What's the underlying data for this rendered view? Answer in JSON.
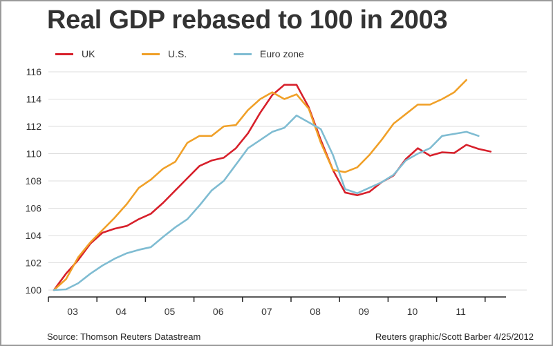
{
  "chart_data": {
    "type": "line",
    "title": "Real GDP rebased to 100 in 2003",
    "xlabel": "",
    "ylabel": "",
    "ylim": [
      100,
      116
    ],
    "yticks": [
      "100",
      "102",
      "104",
      "106",
      "108",
      "110",
      "112",
      "114",
      "116"
    ],
    "ytick_values": [
      100,
      102,
      104,
      106,
      108,
      110,
      112,
      114,
      116
    ],
    "xticks": [
      "03",
      "04",
      "05",
      "06",
      "07",
      "08",
      "09",
      "10",
      "11"
    ],
    "x_frequency": "quarterly",
    "x_start": "2003 Q1",
    "grid": true,
    "legend_position": "top-left",
    "series": [
      {
        "name": "UK",
        "color": "#d7202b",
        "values": [
          100,
          101.2,
          102.2,
          103.4,
          104.2,
          104.5,
          104.7,
          105.2,
          105.6,
          106.4,
          107.3,
          108.2,
          109.1,
          109.5,
          109.7,
          110.4,
          111.5,
          113.0,
          114.3,
          115.05,
          115.05,
          113.4,
          111.0,
          108.8,
          107.15,
          106.95,
          107.2,
          107.9,
          108.4,
          109.6,
          110.4,
          109.85,
          110.1,
          110.05,
          110.65,
          110.35,
          110.15
        ]
      },
      {
        "name": "U.S.",
        "color": "#f0a028",
        "values": [
          100,
          100.8,
          102.4,
          103.5,
          104.4,
          105.3,
          106.3,
          107.5,
          108.1,
          108.9,
          109.4,
          110.8,
          111.3,
          111.3,
          112.0,
          112.1,
          113.2,
          114.0,
          114.5,
          114.0,
          114.35,
          113.3,
          110.8,
          108.8,
          108.65,
          109.0,
          109.9,
          111.0,
          112.2,
          112.9,
          113.6,
          113.6,
          114.0,
          114.5,
          115.4
        ]
      },
      {
        "name": "Euro zone",
        "color": "#7fbcd2",
        "values": [
          100,
          100.05,
          100.5,
          101.2,
          101.8,
          102.3,
          102.7,
          102.95,
          103.15,
          103.9,
          104.6,
          105.2,
          106.2,
          107.3,
          108.0,
          109.2,
          110.4,
          111.0,
          111.6,
          111.9,
          112.8,
          112.3,
          111.8,
          109.9,
          107.4,
          107.1,
          107.5,
          107.9,
          108.45,
          109.5,
          110.0,
          110.4,
          111.3,
          111.45,
          111.6,
          111.3
        ]
      }
    ]
  },
  "footer": {
    "source": "Source: Thomson Reuters Datastream",
    "credit": "Reuters graphic/Scott Barber 4/25/2012"
  }
}
